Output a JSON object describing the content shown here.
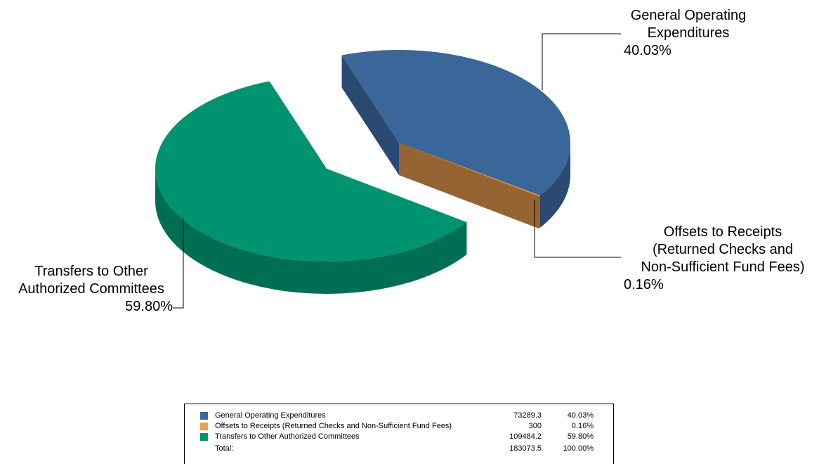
{
  "chart_data": {
    "type": "pie",
    "three_d": true,
    "exploded": true,
    "slices": [
      {
        "label": "General Operating Expenditures",
        "callout": [
          "General Operating",
          "Expenditures",
          "40.03%"
        ],
        "value": 73289.3,
        "percent": "40.03%",
        "color": "#3A6699",
        "side_color": "#2A4A72"
      },
      {
        "label": "Offsets to Receipts (Returned Checks and Non-Sufficient Fund Fees)",
        "callout": [
          "Offsets to Receipts",
          "(Returned Checks and",
          "Non-Sufficient Fund Fees)",
          "0.16%"
        ],
        "value": 300,
        "percent": "0.16%",
        "color": "#E8A050",
        "side_color": "#966432"
      },
      {
        "label": "Transfers to Other Authorized Committees",
        "callout": [
          "Transfers to Other",
          "Authorized Committees",
          "59.80%"
        ],
        "value": 109484.2,
        "percent": "59.80%",
        "color": "#00936F",
        "side_color": "#006E52"
      }
    ],
    "legend": {
      "placement": "bottom",
      "total_label": "Total:",
      "total_value": "183073.5",
      "total_percent": "100.00%"
    }
  }
}
